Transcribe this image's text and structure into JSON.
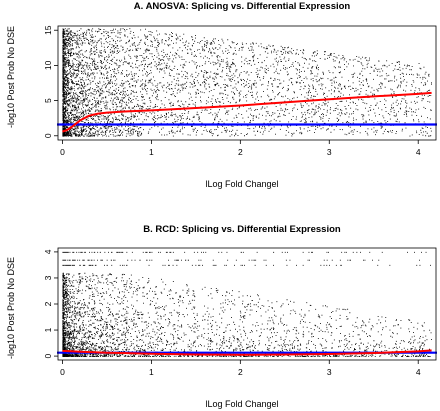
{
  "chart_data": [
    {
      "type": "scatter",
      "title": "A.  ANOSVA: Splicing vs. Differential Expression",
      "xlabel": "lLog Fold Changel",
      "ylabel": "-log10 Post Prob No DSE",
      "xlim": [
        -0.05,
        4.2
      ],
      "ylim": [
        -0.6,
        15.6
      ],
      "xticks": [
        0,
        1,
        2,
        3,
        4
      ],
      "yticks": [
        0,
        5,
        10,
        15
      ],
      "grid": false,
      "colors": {
        "points": "#000000",
        "curve": "#ff0000",
        "hline": "#0000ff"
      },
      "threshold_y": 1.6,
      "trend_curve": {
        "color": "#ff0000",
        "x": [
          0.0,
          0.05,
          0.1,
          0.15,
          0.2,
          0.3,
          0.4,
          0.5,
          0.7,
          1.0,
          1.5,
          2.0,
          2.5,
          3.0,
          3.5,
          4.0,
          4.15
        ],
        "y": [
          0.6,
          0.8,
          1.2,
          1.7,
          2.2,
          2.85,
          3.15,
          3.3,
          3.45,
          3.6,
          3.95,
          4.3,
          4.75,
          5.2,
          5.6,
          5.95,
          6.1
        ]
      },
      "points_model": {
        "count": 5200,
        "x_range": [
          0,
          4.15
        ],
        "y_range": [
          0,
          15.3
        ],
        "density": "very dense near x 0-0.9 with y 0-15; sparse at larger x"
      }
    },
    {
      "type": "scatter",
      "title": "B.  RCD: Splicing vs. Differential Expression",
      "xlabel": "lLog Fold Changel",
      "ylabel": "-log10 Post Prob No DSE",
      "xlim": [
        -0.05,
        4.2
      ],
      "ylim": [
        -0.15,
        4.15
      ],
      "xticks": [
        0,
        1,
        2,
        3,
        4
      ],
      "yticks": [
        0,
        1,
        2,
        3,
        4
      ],
      "grid": false,
      "colors": {
        "points": "#000000",
        "curve": "#ff0000",
        "hline": "#0000ff"
      },
      "threshold_y": 0.13,
      "trend_curve": {
        "color": "#ff0000",
        "x": [
          0.0,
          0.2,
          0.5,
          1.0,
          1.5,
          2.0,
          2.5,
          3.0,
          3.5,
          4.0,
          4.15
        ],
        "y": [
          0.2,
          0.17,
          0.13,
          0.09,
          0.06,
          0.05,
          0.06,
          0.08,
          0.12,
          0.18,
          0.22
        ]
      },
      "points_model": {
        "count": 4200,
        "x_range": [
          0,
          4.15
        ],
        "y_range": [
          0,
          4
        ],
        "density": "very dense near x 0-0.7 with y 0-3; banded near y 4, 3.7, 3.5"
      }
    }
  ]
}
